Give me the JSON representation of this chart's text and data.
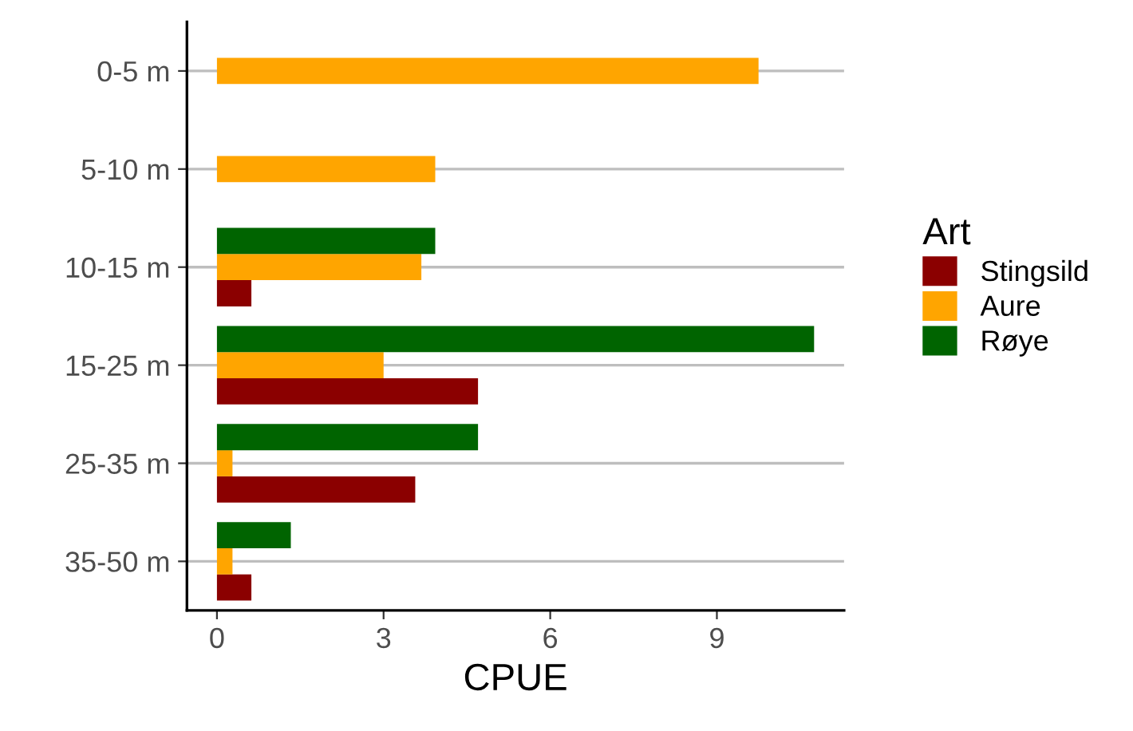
{
  "chart_data": {
    "type": "bar",
    "orientation": "horizontal",
    "xlabel": "CPUE",
    "legend_title": "Art",
    "legend": "right",
    "grid": "y",
    "categories": [
      "0-5 m",
      "5-10 m",
      "10-15 m",
      "15-25 m",
      "25-35 m",
      "35-50 m"
    ],
    "series": [
      {
        "name": "Stingsild",
        "color": "#8b0000",
        "values": [
          null,
          null,
          0.62,
          4.7,
          3.57,
          0.62
        ]
      },
      {
        "name": "Aure",
        "color": "#ffa500",
        "values": [
          9.75,
          3.93,
          3.68,
          3.0,
          0.28,
          0.28
        ]
      },
      {
        "name": "Røye",
        "color": "#006400",
        "values": [
          null,
          null,
          3.93,
          10.75,
          4.7,
          1.33
        ]
      }
    ],
    "xlim": [
      -0.54,
      11.29
    ],
    "xticks": [
      0,
      3,
      6,
      9
    ]
  }
}
